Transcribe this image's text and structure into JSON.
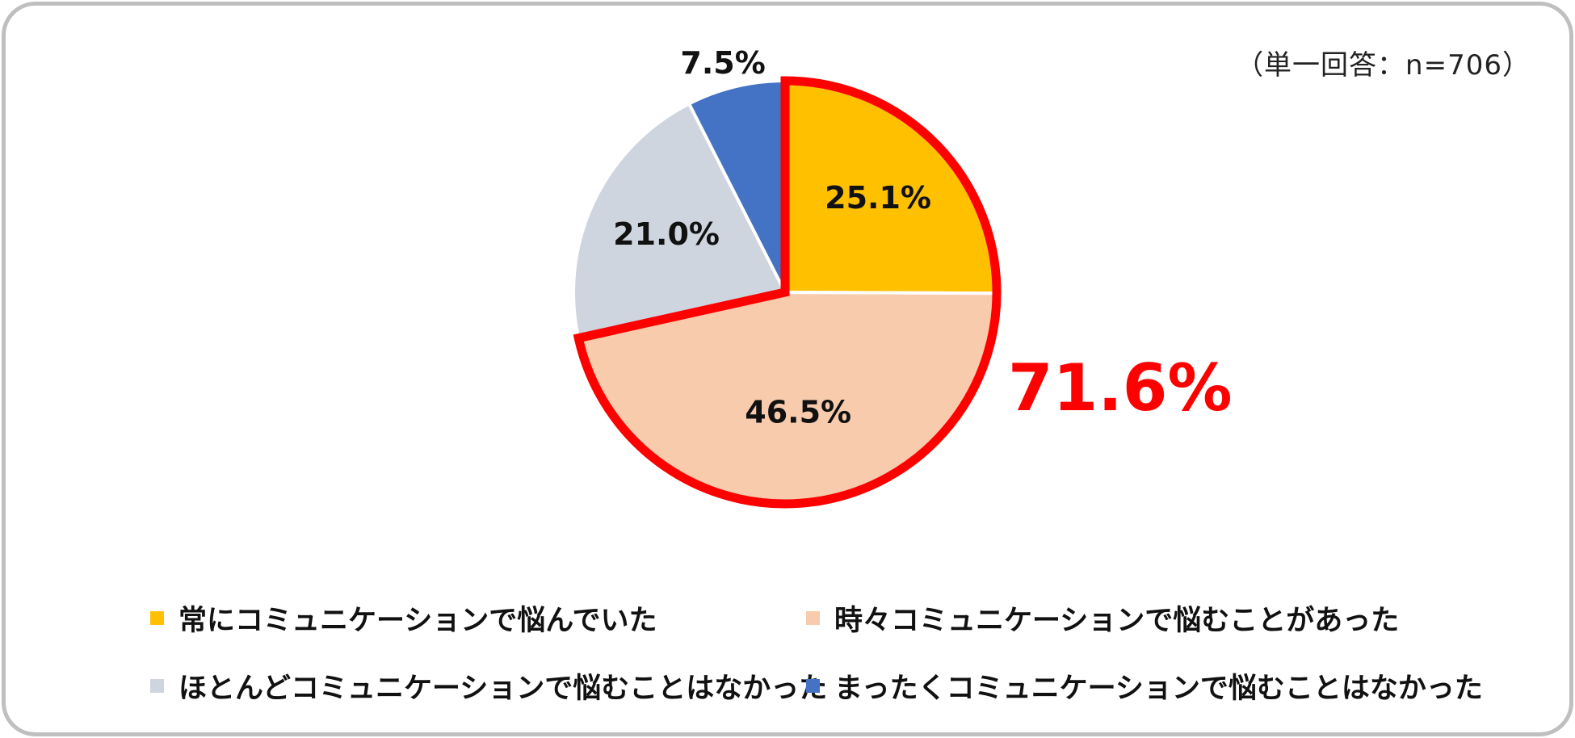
{
  "note": "（単一回答：n=706）",
  "colors": {
    "frame": "#bfbfbf",
    "highlight": "#ff0000"
  },
  "chart_data": {
    "type": "pie",
    "title": "",
    "slices": [
      {
        "label": "常にコミュニケーションで悩んでいた",
        "value": 25.1,
        "display": "25.1%",
        "color": "#ffc000"
      },
      {
        "label": "時々コミュニケーションで悩むことがあった",
        "value": 46.5,
        "display": "46.5%",
        "color": "#f8cbad"
      },
      {
        "label": "ほとんどコミュニケーションで悩むことはなかった",
        "value": 21.0,
        "display": "21.0%",
        "color": "#cfd5de"
      },
      {
        "label": "まったくコミュニケーションで悩むことはなかった",
        "value": 7.5,
        "display": "7.5%",
        "color": "#4472c4"
      }
    ],
    "start": "12 o'clock",
    "direction": "clockwise",
    "highlight": {
      "slices": [
        0,
        1
      ],
      "total": "71.6%",
      "color": "#ff0000"
    },
    "legend_position": "bottom"
  }
}
